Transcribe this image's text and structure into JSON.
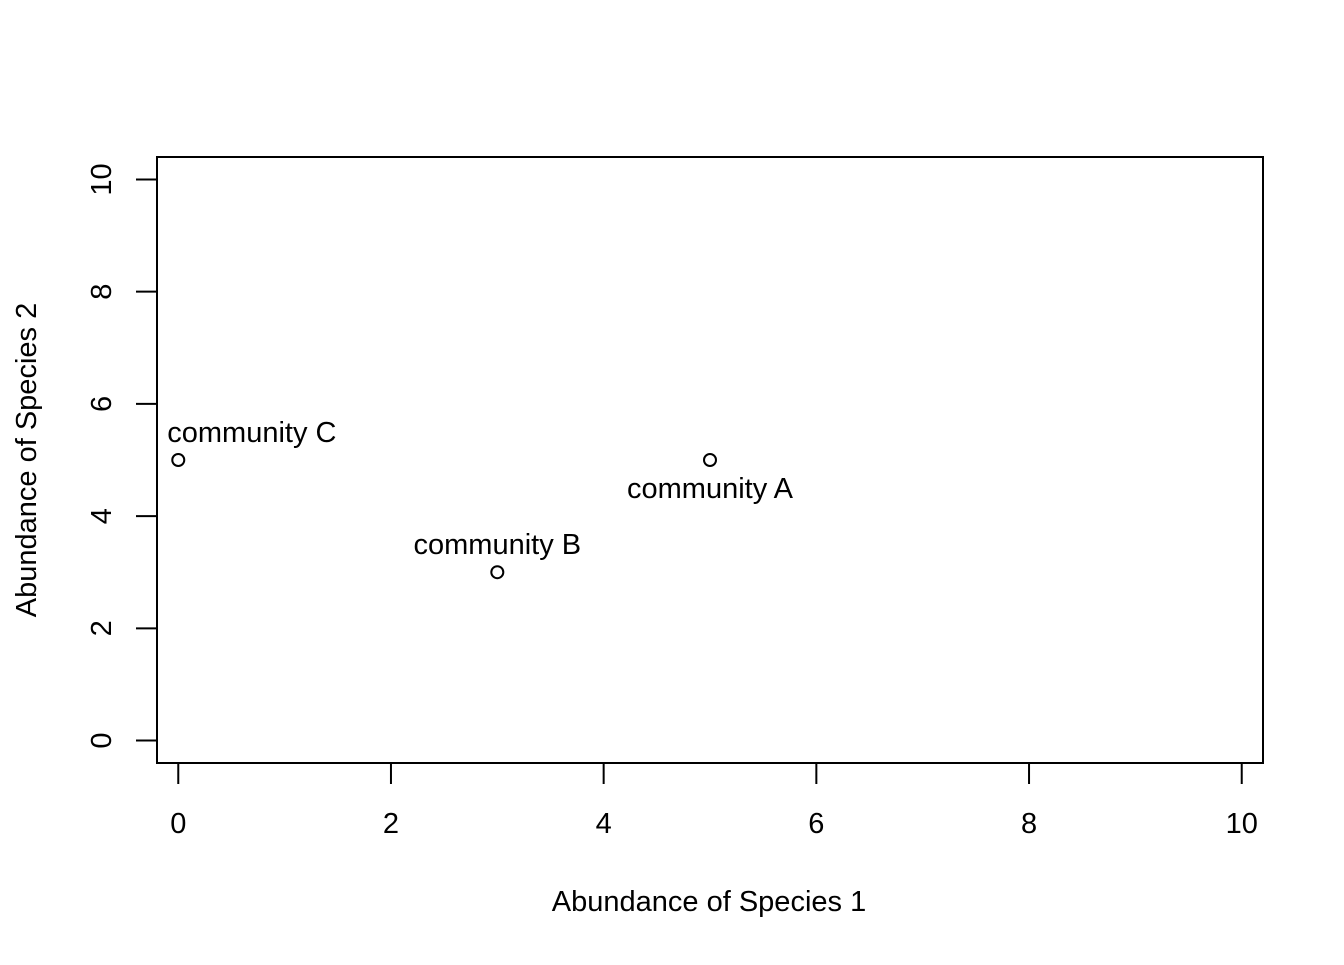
{
  "chart_data": {
    "type": "scatter",
    "title": "",
    "xlabel": "Abundance of Species 1",
    "ylabel": "Abundance of Species 2",
    "xlim": [
      -0.2,
      10.2
    ],
    "ylim": [
      -0.4,
      10.4
    ],
    "xticks": [
      0,
      2,
      4,
      6,
      8,
      10
    ],
    "yticks": [
      0,
      2,
      4,
      6,
      8,
      10
    ],
    "grid": false,
    "marker": "open-circle",
    "points": [
      {
        "x": 5,
        "y": 5,
        "label": "community A",
        "label_position": "below"
      },
      {
        "x": 3,
        "y": 3,
        "label": "community B",
        "label_position": "above"
      },
      {
        "x": 0,
        "y": 5,
        "label": "community C",
        "label_position": "above-right"
      }
    ]
  }
}
